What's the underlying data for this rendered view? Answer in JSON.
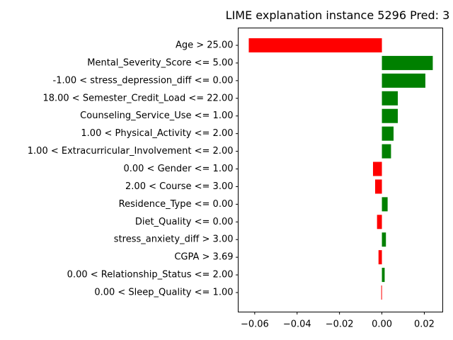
{
  "chart_data": {
    "type": "bar",
    "orientation": "horizontal",
    "title": "LIME explanation instance 5296 Pred: 3",
    "xlabel": "",
    "ylabel": "",
    "xlim": [
      -0.0678,
      0.0287
    ],
    "xticks": [
      "-0.06",
      "-0.04",
      "-0.02",
      "0.00",
      "0.02"
    ],
    "xtick_values": [
      -0.06,
      -0.04,
      -0.02,
      0.0,
      0.02
    ],
    "grid": false,
    "legend": "none",
    "positive_color": "#008000",
    "negative_color": "#ff0000",
    "categories": [
      "Age > 25.00",
      "Mental_Severity_Score <= 5.00",
      "-1.00 < stress_depression_diff <= 0.00",
      "18.00 < Semester_Credit_Load <= 22.00",
      "Counseling_Service_Use <= 1.00",
      "1.00 < Physical_Activity <= 2.00",
      "1.00 < Extracurricular_Involvement <= 2.00",
      "0.00 < Gender <= 1.00",
      "2.00 < Course <= 3.00",
      "Residence_Type <= 0.00",
      "Diet_Quality <= 0.00",
      "stress_anxiety_diff > 3.00",
      "CGPA > 3.69",
      "0.00 < Relationship_Status <= 2.00",
      "0.00 < Sleep_Quality <= 1.00"
    ],
    "values": [
      -0.0628,
      0.024,
      0.0205,
      0.0075,
      0.0075,
      0.0055,
      0.0043,
      -0.0042,
      -0.0032,
      0.0027,
      -0.0023,
      0.0019,
      -0.0016,
      0.0013,
      -0.0003
    ]
  }
}
